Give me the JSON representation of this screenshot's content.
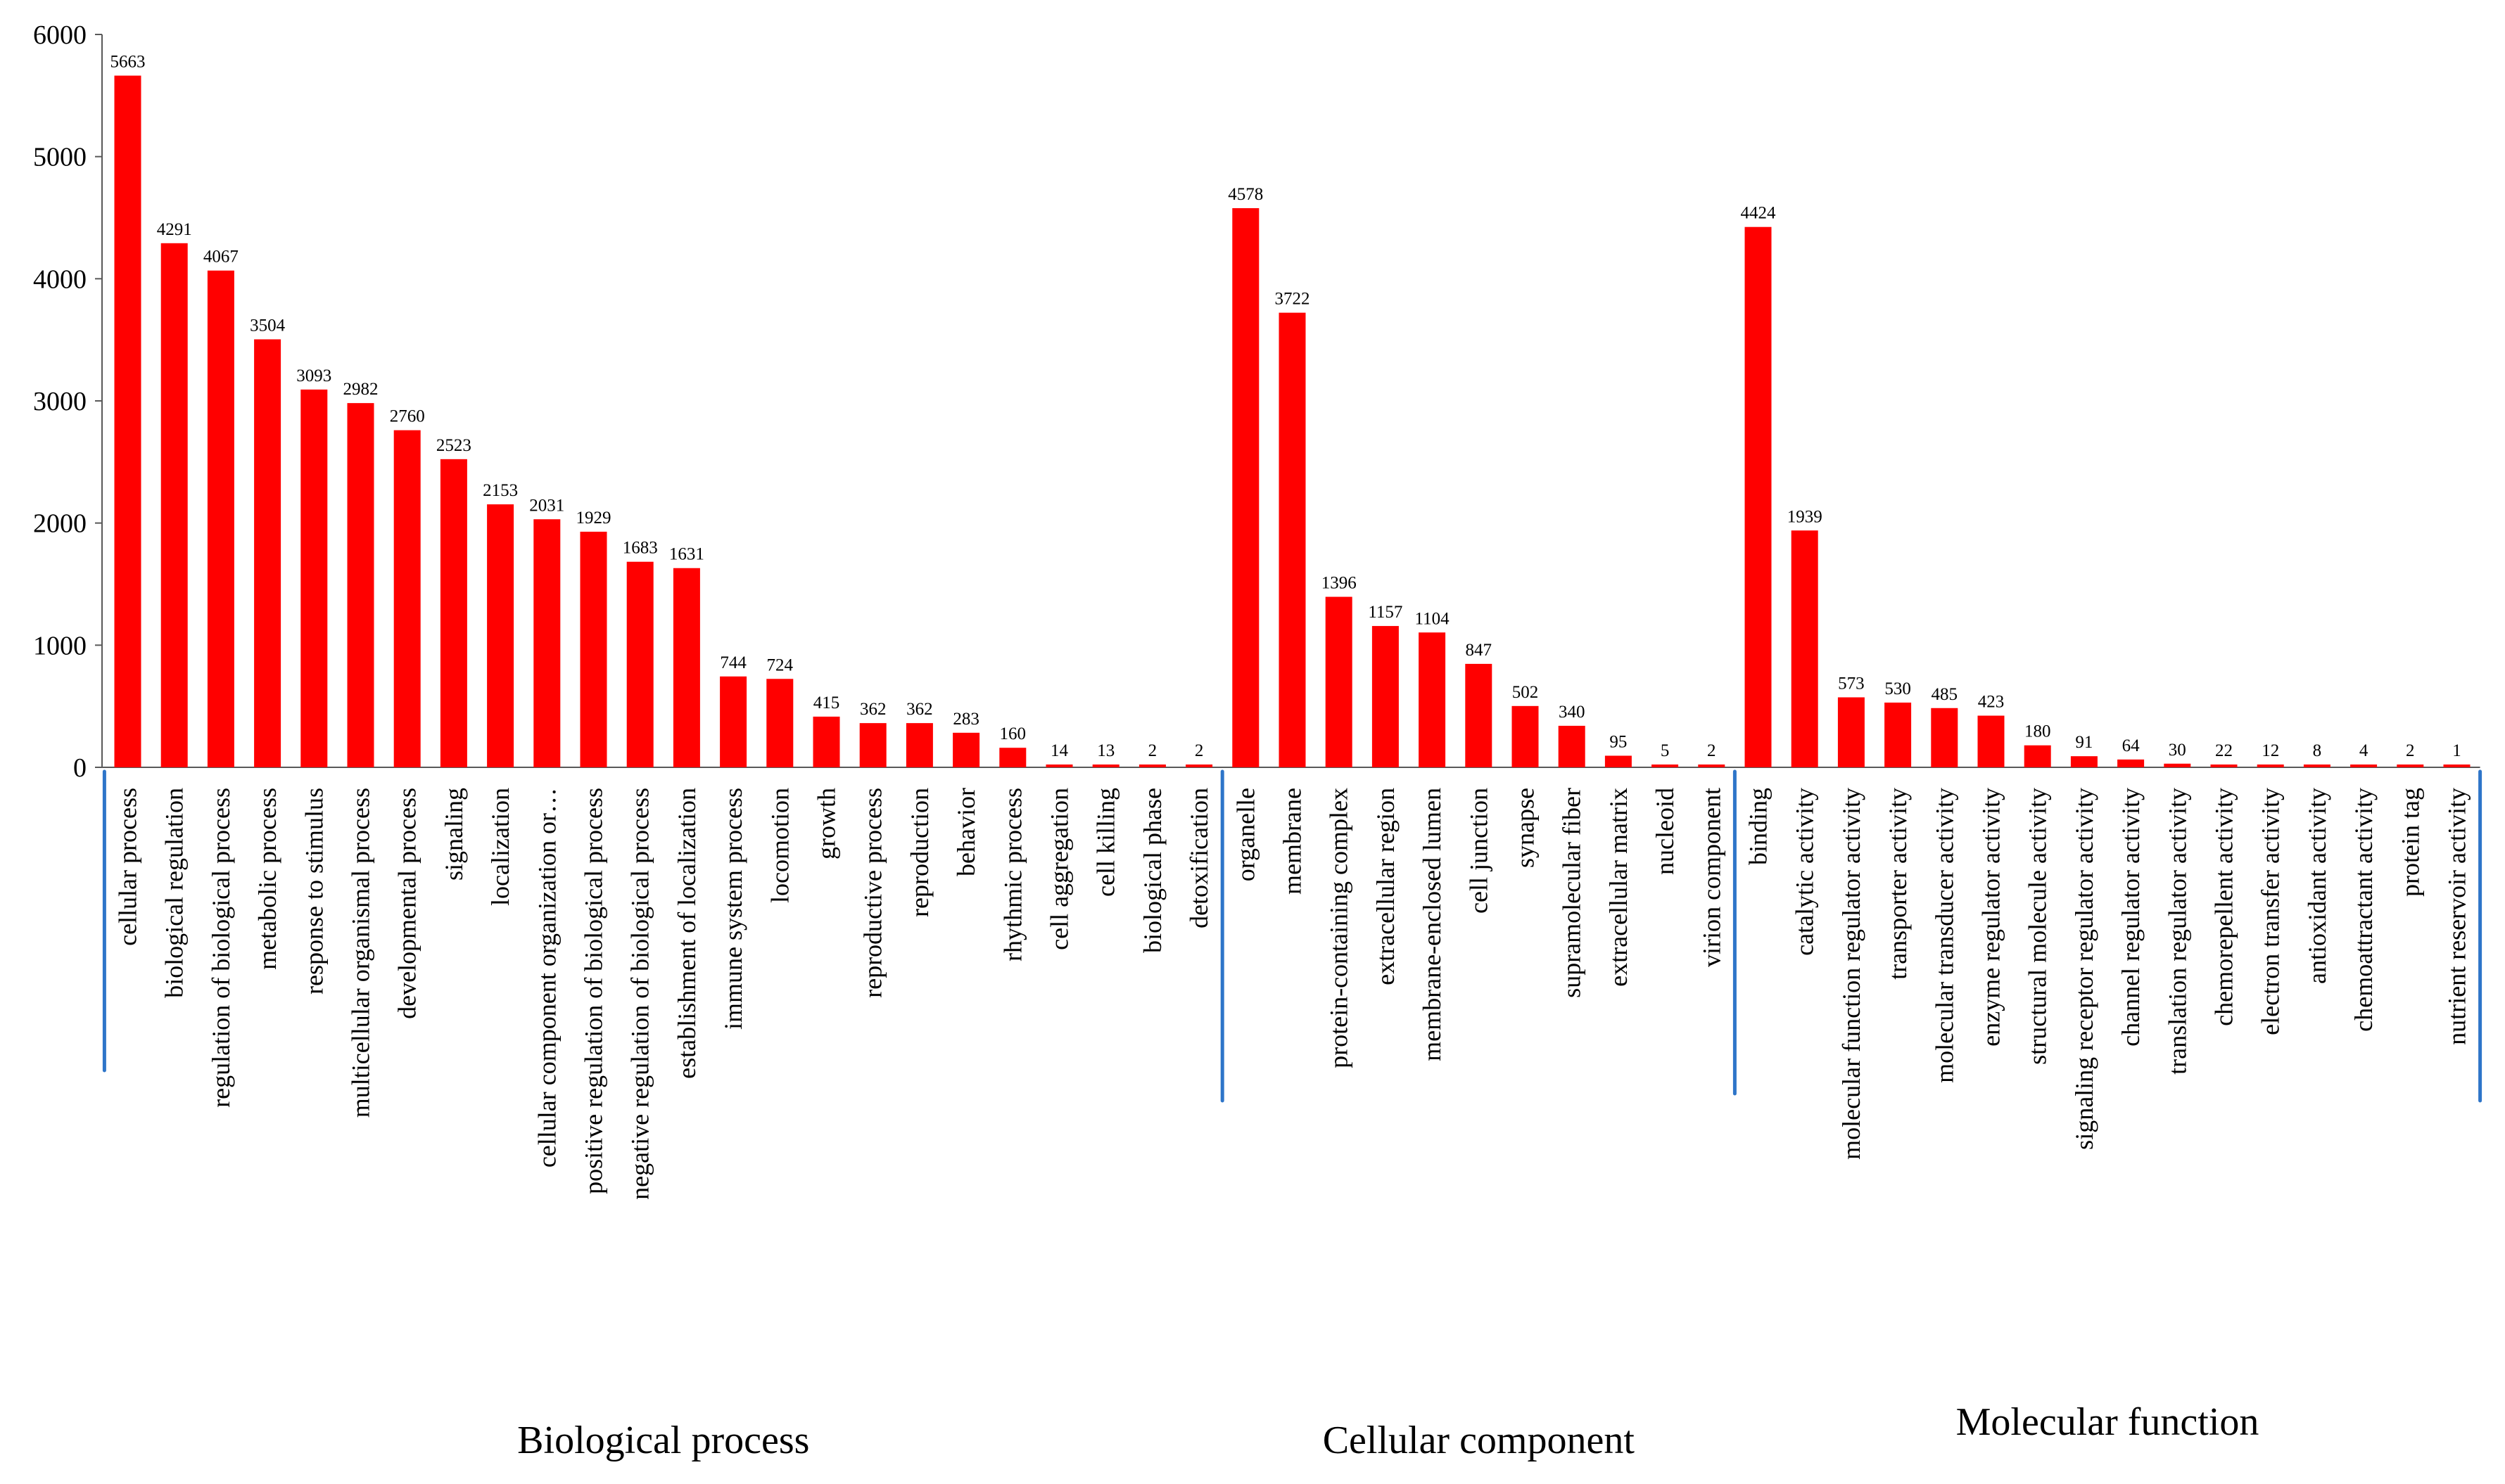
{
  "chart_data": {
    "type": "bar",
    "title": "",
    "xlabel": "",
    "ylabel": "",
    "ylim": [
      0,
      6000
    ],
    "yticks": [
      "0",
      "1000",
      "2000",
      "3000",
      "4000",
      "5000",
      "6000"
    ],
    "bar_color": "#ff0000",
    "divider_color": "#2e75c9",
    "groups": [
      {
        "name": "Biological process",
        "categories": [
          "cellular process",
          "biological regulation",
          "regulation of biological process",
          "metabolic process",
          "response to stimulus",
          "multicellular organismal process",
          "developmental process",
          "signaling",
          "localization",
          "cellular component organization or…",
          "positive regulation of biological process",
          "negative regulation of biological process",
          "establishment of localization",
          "immune system process",
          "locomotion",
          "growth",
          "reproductive process",
          "reproduction",
          "behavior",
          "rhythmic process",
          "cell aggregation",
          "cell killing",
          "biological phase",
          "detoxification"
        ],
        "values": [
          5663,
          4291,
          4067,
          3504,
          3093,
          2982,
          2760,
          2523,
          2153,
          2031,
          1929,
          1683,
          1631,
          744,
          724,
          415,
          362,
          362,
          283,
          160,
          14,
          13,
          2,
          2
        ]
      },
      {
        "name": "Cellular component",
        "categories": [
          "organelle",
          "membrane",
          "protein-containing complex",
          "extracellular region",
          "membrane-enclosed lumen",
          "cell junction",
          "synapse",
          "supramolecular fiber",
          "extracellular matrix",
          "nucleoid",
          "virion component"
        ],
        "values": [
          4578,
          3722,
          1396,
          1157,
          1104,
          847,
          502,
          340,
          95,
          5,
          2
        ]
      },
      {
        "name": "Molecular function",
        "categories": [
          "binding",
          "catalytic activity",
          "molecular function regulator activity",
          "transporter activity",
          "molecular transducer activity",
          "enzyme regulator activity",
          "structural molecule activity",
          "signaling receptor regulator activity",
          "channel regulator activity",
          "translation regulator activity",
          "chemorepellent activity",
          "electron transfer activity",
          "antioxidant activity",
          "chemoattractant activity",
          "protein tag",
          "nutrient reservoir activity"
        ],
        "values": [
          4424,
          1939,
          573,
          530,
          485,
          423,
          180,
          91,
          64,
          30,
          22,
          12,
          8,
          4,
          2,
          1
        ]
      }
    ]
  }
}
